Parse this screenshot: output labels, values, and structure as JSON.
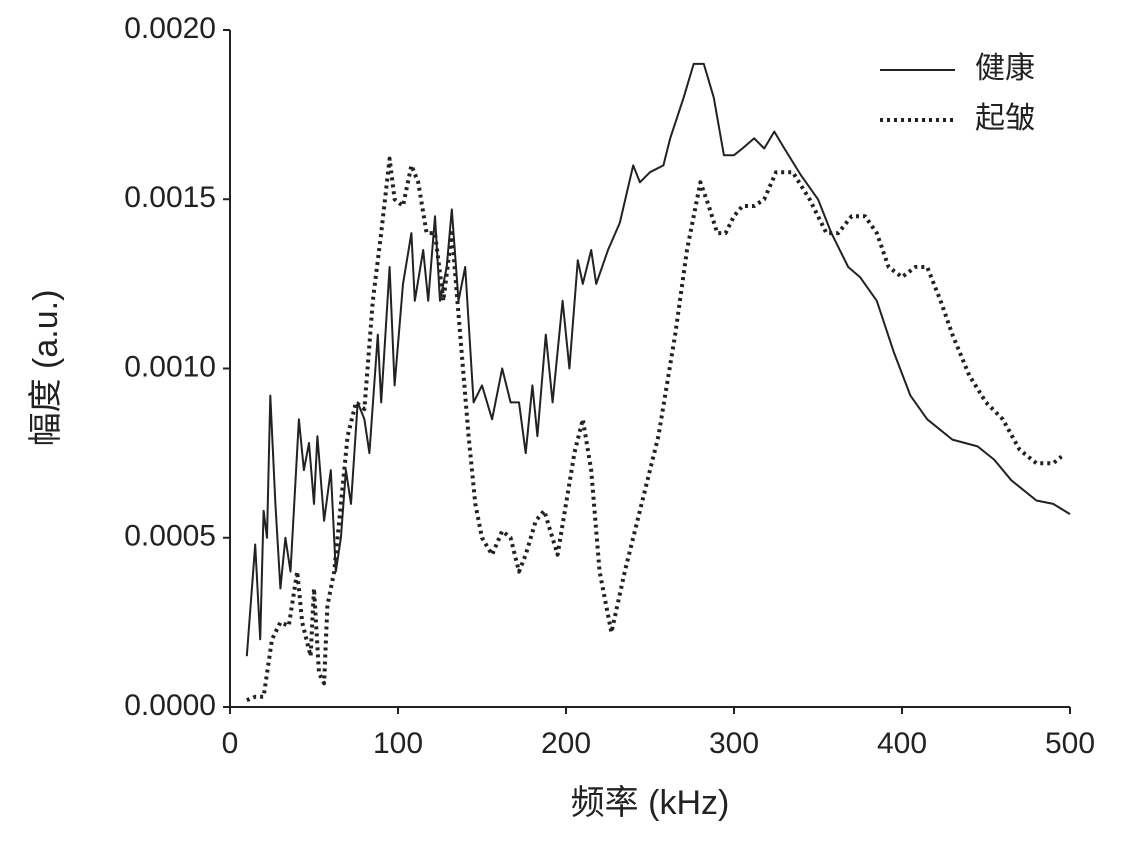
{
  "chart_data": {
    "type": "line",
    "x_label": "频率 (kHz)",
    "y_label": "幅度 (a.u.)",
    "xlim": [
      0,
      500
    ],
    "xticks": [
      0,
      100,
      200,
      300,
      400,
      500
    ],
    "ylim": [
      0,
      0.002
    ],
    "yticks": [
      {
        "value": 0,
        "label": "0.0000"
      },
      {
        "value": 0.0005,
        "label": "0.0005"
      },
      {
        "value": 0.001,
        "label": "0.0010"
      },
      {
        "value": 0.0015,
        "label": "0.0015"
      },
      {
        "value": 0.002,
        "label": "0.0020"
      }
    ],
    "grid": false,
    "legend": "upper right",
    "series": [
      {
        "name": "健康",
        "color": "#222222",
        "style": "solid",
        "x": [
          10,
          15,
          18,
          20,
          22,
          24,
          27,
          30,
          33,
          36,
          41,
          44,
          47,
          50,
          52,
          56,
          60,
          63,
          66,
          69,
          72,
          76,
          80,
          83,
          88,
          90,
          95,
          98,
          103,
          108,
          110,
          115,
          118,
          122,
          125,
          129,
          132,
          136,
          140,
          145,
          150,
          156,
          162,
          167,
          172,
          176,
          180,
          183,
          188,
          192,
          198,
          202,
          207,
          210,
          215,
          218,
          225,
          232,
          240,
          244,
          250,
          258,
          262,
          270,
          276,
          282,
          288,
          294,
          300,
          305,
          312,
          318,
          324,
          330,
          340,
          350,
          358,
          368,
          375,
          385,
          395,
          405,
          415,
          430,
          445,
          455,
          465,
          480,
          490,
          500
        ],
        "values": [
          0.00015,
          0.00048,
          0.0002,
          0.00058,
          0.0005,
          0.00092,
          0.0006,
          0.00035,
          0.0005,
          0.0004,
          0.00085,
          0.0007,
          0.00078,
          0.0006,
          0.0008,
          0.00055,
          0.0007,
          0.0004,
          0.0005,
          0.0007,
          0.0006,
          0.0009,
          0.00085,
          0.00075,
          0.0011,
          0.0009,
          0.0013,
          0.00095,
          0.00125,
          0.0014,
          0.0012,
          0.00135,
          0.0012,
          0.00145,
          0.0012,
          0.0013,
          0.00147,
          0.0012,
          0.0013,
          0.0009,
          0.00095,
          0.00085,
          0.001,
          0.0009,
          0.0009,
          0.00075,
          0.00095,
          0.0008,
          0.0011,
          0.0009,
          0.0012,
          0.001,
          0.00132,
          0.00125,
          0.00135,
          0.00125,
          0.00135,
          0.00143,
          0.0016,
          0.00155,
          0.00158,
          0.0016,
          0.00168,
          0.0018,
          0.0019,
          0.0019,
          0.0018,
          0.00163,
          0.00163,
          0.00165,
          0.00168,
          0.00165,
          0.0017,
          0.00165,
          0.00157,
          0.0015,
          0.0014,
          0.0013,
          0.00127,
          0.0012,
          0.00105,
          0.00092,
          0.00085,
          0.00079,
          0.00077,
          0.00073,
          0.00067,
          0.00061,
          0.0006,
          0.00057
        ]
      },
      {
        "name": "起皱",
        "color": "#222222",
        "style": "dotted",
        "x": [
          10,
          15,
          20,
          25,
          30,
          35,
          40,
          43,
          48,
          50,
          53,
          56,
          58,
          62,
          66,
          70,
          75,
          80,
          85,
          90,
          95,
          98,
          103,
          108,
          112,
          117,
          122,
          127,
          132,
          137,
          142,
          146,
          150,
          156,
          162,
          167,
          172,
          176,
          182,
          187,
          195,
          200,
          205,
          210,
          215,
          220,
          227,
          235,
          245,
          255,
          265,
          272,
          280,
          285,
          290,
          295,
          300,
          305,
          312,
          318,
          325,
          335,
          345,
          355,
          362,
          370,
          378,
          385,
          392,
          400,
          408,
          415,
          423,
          430,
          440,
          450,
          460,
          470,
          480,
          490,
          495
        ],
        "values": [
          2e-05,
          3e-05,
          3e-05,
          0.0002,
          0.00025,
          0.00024,
          0.0004,
          0.00025,
          0.00015,
          0.00035,
          0.0001,
          7e-05,
          0.0003,
          0.0004,
          0.0006,
          0.0008,
          0.0009,
          0.00088,
          0.0012,
          0.0014,
          0.00162,
          0.0015,
          0.00148,
          0.0016,
          0.00155,
          0.0014,
          0.0014,
          0.0012,
          0.0014,
          0.0011,
          0.0008,
          0.0006,
          0.0005,
          0.00045,
          0.00052,
          0.0005,
          0.0004,
          0.00045,
          0.00055,
          0.00058,
          0.00045,
          0.0006,
          0.00075,
          0.00085,
          0.0007,
          0.0004,
          0.00022,
          0.0004,
          0.0006,
          0.0008,
          0.0011,
          0.00135,
          0.00155,
          0.00148,
          0.0014,
          0.0014,
          0.00145,
          0.00148,
          0.00148,
          0.0015,
          0.00158,
          0.00158,
          0.0015,
          0.0014,
          0.0014,
          0.00145,
          0.00145,
          0.0014,
          0.0013,
          0.00127,
          0.0013,
          0.0013,
          0.0012,
          0.0011,
          0.00098,
          0.0009,
          0.00085,
          0.00076,
          0.00072,
          0.00072,
          0.00074
        ]
      }
    ]
  }
}
